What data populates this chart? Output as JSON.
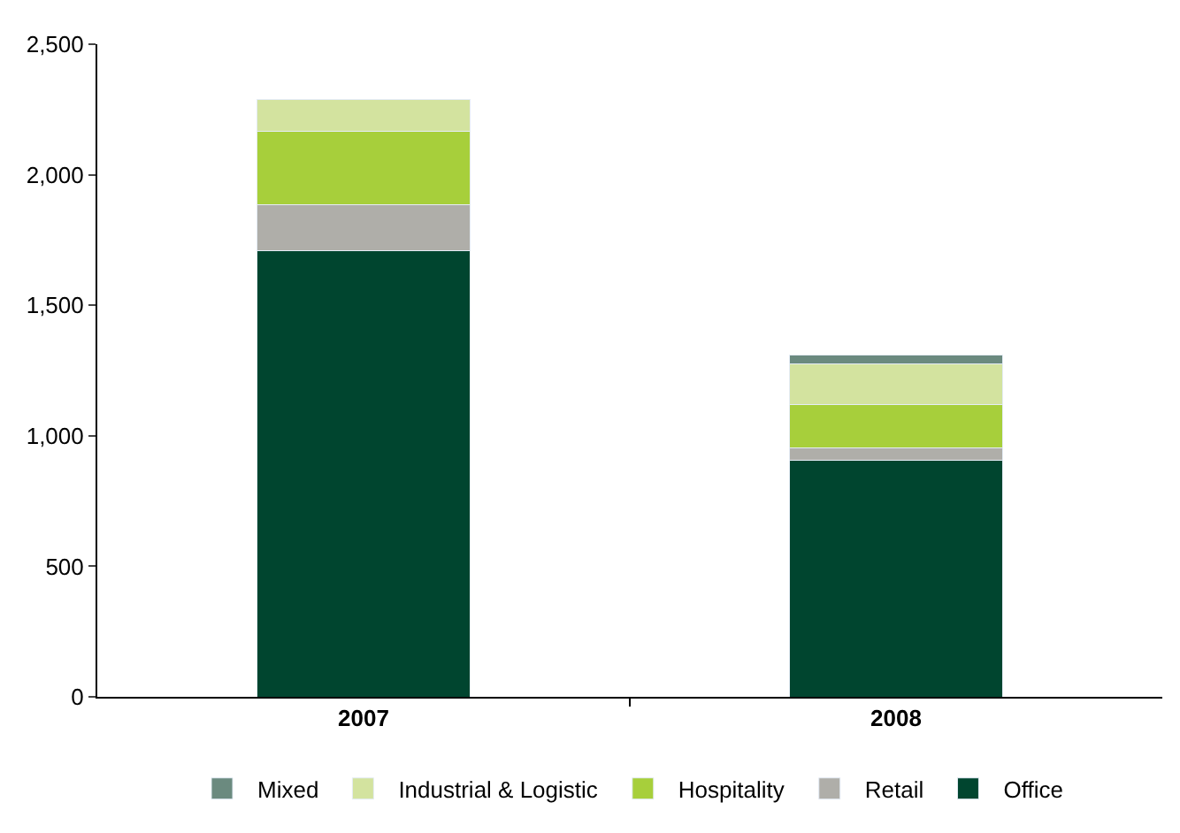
{
  "chart_data": {
    "type": "bar",
    "stacked": true,
    "categories": [
      "2007",
      "2008"
    ],
    "series": [
      {
        "name": "Office",
        "color": "#00452f",
        "values": [
          1710,
          905
        ]
      },
      {
        "name": "Retail",
        "color": "#afaea9",
        "values": [
          175,
          50
        ]
      },
      {
        "name": "Hospitality",
        "color": "#a7cf3b",
        "values": [
          280,
          165
        ]
      },
      {
        "name": "Industrial & Logistic",
        "color": "#d3e39f",
        "values": [
          125,
          155
        ]
      },
      {
        "name": "Mixed",
        "color": "#6b8a7f",
        "values": [
          null,
          35
        ]
      }
    ],
    "ylim": [
      0,
      2500
    ],
    "yticks": [
      {
        "value": 0,
        "label": "0"
      },
      {
        "value": 500,
        "label": "500"
      },
      {
        "value": 1000,
        "label": "1,000"
      },
      {
        "value": 1500,
        "label": "1,500"
      },
      {
        "value": 2000,
        "label": "2,000"
      },
      {
        "value": 2500,
        "label": "2,500"
      }
    ],
    "legend": "bottom"
  }
}
